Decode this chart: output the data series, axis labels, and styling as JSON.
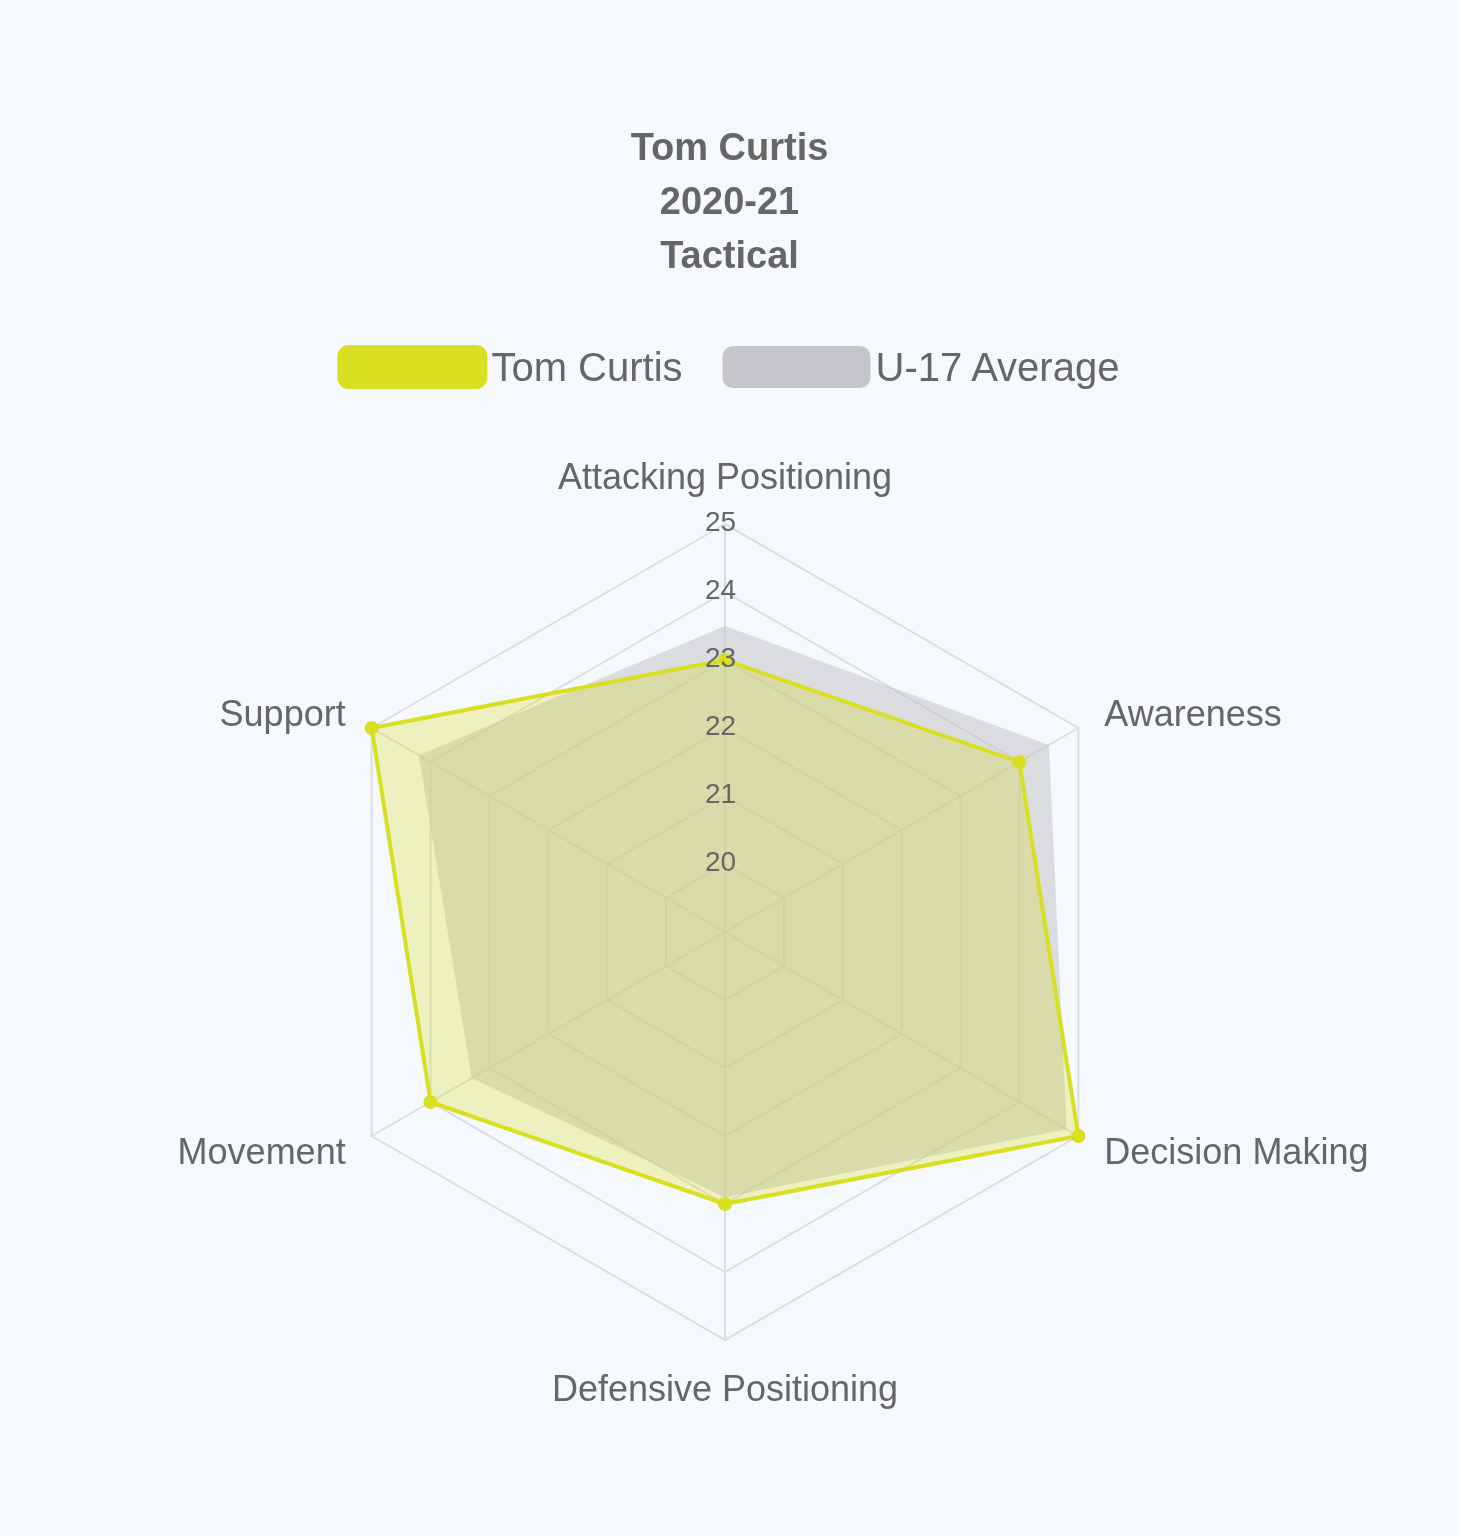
{
  "chart_data": {
    "type": "radar",
    "title": "Tom Curtis\n2020-21\nTactical",
    "categories": [
      "Attacking Positioning",
      "Awareness",
      "Decision Making",
      "Defensive Positioning",
      "Movement",
      "Support"
    ],
    "ylim": [
      19,
      25
    ],
    "yticks": [
      20,
      21,
      22,
      23,
      24,
      25
    ],
    "legend": "top",
    "grid": true,
    "series": [
      {
        "name": "Tom Curtis",
        "color": "#d9e021",
        "marker": "circle",
        "values": [
          23,
          24,
          25,
          23,
          24,
          25
        ]
      },
      {
        "name": "U-17 Average",
        "color": "#c4c6ca",
        "marker": "none",
        "values": [
          23.5,
          24.5,
          24.8,
          22.9,
          23.3,
          24.2
        ]
      }
    ]
  }
}
